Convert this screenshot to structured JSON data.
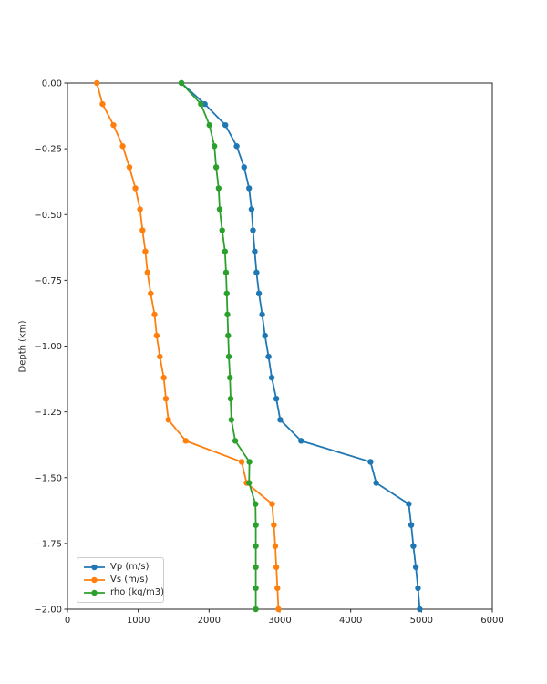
{
  "figure": {
    "background": "#ffffff",
    "y_axis_title": "Depth (km)"
  },
  "colors": {
    "vp": "#1f77b4",
    "vs": "#ff7f0e",
    "rho": "#2ca02c",
    "axis": "#262626",
    "legend_border": "#cccccc"
  },
  "legend": {
    "position": "lower left",
    "items": [
      "Vp (m/s)",
      "Vs (m/s)",
      "rho (kg/m3)"
    ]
  },
  "chart_data": {
    "type": "line",
    "title": "",
    "xlabel": "",
    "ylabel": "Depth (km)",
    "grid": false,
    "legend_position": "lower left",
    "xlim": [
      0,
      6000
    ],
    "ylim": [
      -2.0,
      0.0
    ],
    "xticks": {
      "values": [
        0,
        1000,
        2000,
        3000,
        4000,
        5000,
        6000
      ],
      "labels": [
        "0",
        "1000",
        "2000",
        "3000",
        "4000",
        "5000",
        "6000"
      ]
    },
    "yticks": {
      "values": [
        0.0,
        -0.25,
        -0.5,
        -0.75,
        -1.0,
        -1.25,
        -1.5,
        -1.75,
        -2.0
      ],
      "labels": [
        "0.00",
        "−0.25",
        "−0.50",
        "−0.75",
        "−1.00",
        "−1.25",
        "−1.50",
        "−1.75",
        "−2.00"
      ]
    },
    "depths_km": [
      0.0,
      -0.08,
      -0.16,
      -0.24,
      -0.32,
      -0.4,
      -0.48,
      -0.56,
      -0.64,
      -0.72,
      -0.8,
      -0.88,
      -0.96,
      -1.04,
      -1.12,
      -1.2,
      -1.28,
      -1.36,
      -1.44,
      -1.52,
      -1.6,
      -1.68,
      -1.76,
      -1.84,
      -1.92,
      -2.0
    ],
    "series": [
      {
        "name": "Vp (m/s)",
        "color": "#1f77b4",
        "values": [
          1610,
          1940,
          2230,
          2390,
          2495,
          2565,
          2600,
          2620,
          2645,
          2670,
          2705,
          2750,
          2790,
          2840,
          2885,
          2950,
          3005,
          3300,
          4280,
          4360,
          4820,
          4855,
          4885,
          4920,
          4950,
          4975
        ]
      },
      {
        "name": "Vs (m/s)",
        "color": "#ff7f0e",
        "values": [
          415,
          495,
          650,
          780,
          875,
          960,
          1025,
          1060,
          1100,
          1130,
          1175,
          1230,
          1260,
          1305,
          1360,
          1390,
          1425,
          1670,
          2460,
          2530,
          2890,
          2915,
          2935,
          2950,
          2965,
          2980
        ]
      },
      {
        "name": "rho (kg/m3)",
        "color": "#2ca02c",
        "values": [
          1610,
          1885,
          2005,
          2075,
          2100,
          2135,
          2150,
          2185,
          2225,
          2240,
          2250,
          2260,
          2270,
          2280,
          2295,
          2305,
          2315,
          2370,
          2570,
          2565,
          2655,
          2660,
          2660,
          2660,
          2660,
          2660
        ]
      }
    ]
  }
}
